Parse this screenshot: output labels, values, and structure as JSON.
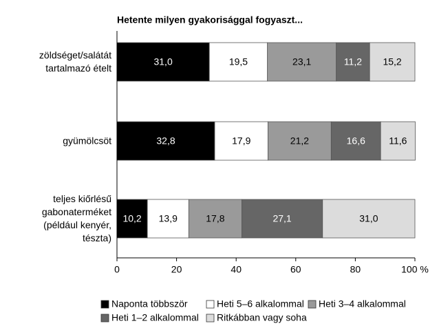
{
  "chart_data": {
    "type": "stacked_bar_horizontal",
    "title": "Hetente milyen gyakorisággal fogyaszt...",
    "categories": [
      "zöldséget/salátát\ntartalmazó ételt",
      "gyümölcsöt",
      "teljes kiőrlésű\ngabonaterméket\n(például kenyér,\ntészta)"
    ],
    "series": [
      {
        "name": "Naponta többször",
        "color": "#000000",
        "values": [
          31.0,
          32.8,
          10.2
        ],
        "value_labels": [
          "31,0",
          "32,8",
          "10,2"
        ]
      },
      {
        "name": "Heti 5–6 alkalommal",
        "color": "#ffffff",
        "values": [
          19.5,
          17.9,
          13.9
        ],
        "value_labels": [
          "19,5",
          "17,9",
          "13,9"
        ]
      },
      {
        "name": "Heti 3–4 alkalommal",
        "color": "#9a9a9a",
        "values": [
          23.1,
          21.2,
          17.8
        ],
        "value_labels": [
          "23,1",
          "21,2",
          "17,8"
        ]
      },
      {
        "name": "Heti 1–2 alkalommal",
        "color": "#666666",
        "values": [
          11.2,
          16.6,
          27.1
        ],
        "value_labels": [
          "11,2",
          "16,6",
          "27,1"
        ]
      },
      {
        "name": "Ritkábban vagy soha",
        "color": "#dcdcdc",
        "values": [
          15.2,
          11.6,
          31.0
        ],
        "value_labels": [
          "15,2",
          "11,6",
          "31,0"
        ]
      }
    ],
    "xlim": [
      0,
      100
    ],
    "xticks": [
      0,
      20,
      40,
      60,
      80,
      {
        "value": 100,
        "label": "100 %"
      }
    ]
  }
}
